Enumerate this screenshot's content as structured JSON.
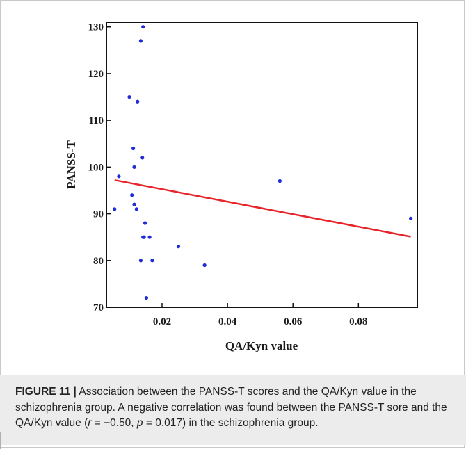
{
  "chart_data": {
    "type": "scatter",
    "xlabel": "QA/Kyn value",
    "ylabel": "PANSS-T",
    "xlim": [
      0.003,
      0.098
    ],
    "ylim": [
      70,
      131
    ],
    "x_ticks": [
      {
        "value": 0.02,
        "label": "0.02"
      },
      {
        "value": 0.04,
        "label": "0.04"
      },
      {
        "value": 0.06,
        "label": "0.06"
      },
      {
        "value": 0.08,
        "label": "0.08"
      }
    ],
    "y_ticks": [
      {
        "value": 70,
        "label": "70"
      },
      {
        "value": 80,
        "label": "80"
      },
      {
        "value": 90,
        "label": "90"
      },
      {
        "value": 100,
        "label": "100"
      },
      {
        "value": 110,
        "label": "110"
      },
      {
        "value": 120,
        "label": "120"
      },
      {
        "value": 130,
        "label": "130"
      }
    ],
    "points": [
      {
        "x": 0.0142,
        "y": 130
      },
      {
        "x": 0.0135,
        "y": 127
      },
      {
        "x": 0.01,
        "y": 115
      },
      {
        "x": 0.0125,
        "y": 114
      },
      {
        "x": 0.0112,
        "y": 104
      },
      {
        "x": 0.014,
        "y": 102
      },
      {
        "x": 0.0115,
        "y": 100
      },
      {
        "x": 0.0068,
        "y": 98
      },
      {
        "x": 0.056,
        "y": 97
      },
      {
        "x": 0.0108,
        "y": 94
      },
      {
        "x": 0.0115,
        "y": 92
      },
      {
        "x": 0.0055,
        "y": 91
      },
      {
        "x": 0.0122,
        "y": 91
      },
      {
        "x": 0.096,
        "y": 89
      },
      {
        "x": 0.0148,
        "y": 88
      },
      {
        "x": 0.0142,
        "y": 85
      },
      {
        "x": 0.0145,
        "y": 85
      },
      {
        "x": 0.0162,
        "y": 85
      },
      {
        "x": 0.025,
        "y": 83
      },
      {
        "x": 0.0135,
        "y": 80
      },
      {
        "x": 0.017,
        "y": 80
      },
      {
        "x": 0.033,
        "y": 79
      },
      {
        "x": 0.0152,
        "y": 72
      }
    ],
    "regression_line": {
      "x1": 0.0055,
      "y1": 97.2,
      "x2": 0.096,
      "y2": 85.1
    },
    "point_color": "#1f2bd6",
    "line_color": "#e8242b",
    "grid": false
  },
  "caption": {
    "label": "FIGURE 11 |",
    "text1": " Association between the PANSS-T scores and the QA/Kyn value in the schizophrenia group. A negative correlation was found between the PANSS-T sore and the QA/Kyn value (",
    "r_symbol": "r",
    "r_value": " = −0.50, ",
    "p_symbol": "p",
    "p_value": " = 0.017",
    "text2": ") in the schizophrenia group."
  }
}
